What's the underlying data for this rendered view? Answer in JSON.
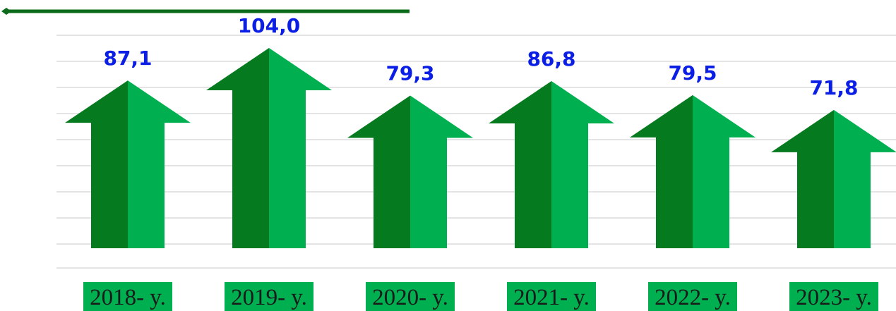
{
  "chart_data": {
    "type": "arrow-bar",
    "categories": [
      "2018- y.",
      "2019- y.",
      "2020- y.",
      "2021- y.",
      "2022- y.",
      "2023- y."
    ],
    "values": [
      87.1,
      104.0,
      79.3,
      86.8,
      79.5,
      71.8
    ],
    "value_labels": [
      "87,1",
      "104,0",
      "79,3",
      "86,8",
      "79,5",
      "71,8"
    ],
    "colors": [
      "#067a1e",
      "#00b050"
    ]
  }
}
